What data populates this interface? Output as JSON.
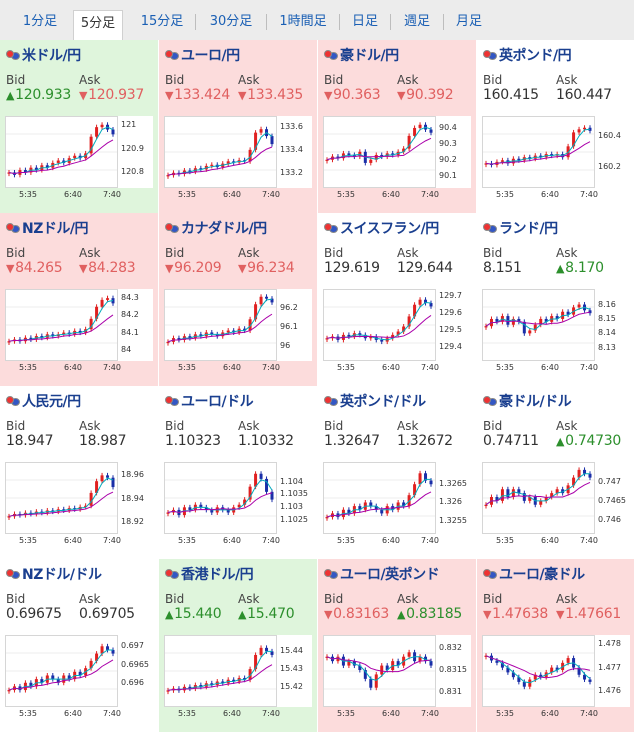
{
  "tabs": [
    "1分足",
    "5分足",
    "15分足",
    "30分足",
    "1時間足",
    "日足",
    "週足",
    "月足"
  ],
  "active_tab": 1,
  "labels": {
    "bid": "Bid",
    "ask": "Ask"
  },
  "colors": {
    "up": "#2c8f2c",
    "down": "#e06060",
    "up_bg": "#dff5dc",
    "down_bg": "#fcdcdc",
    "candle_up": "#e02020",
    "candle_down": "#1a2ea8",
    "ma_short": "#00aabb",
    "ma_long": "#aa00aa"
  },
  "x_ticks": [
    "5:35",
    "6:40",
    "7:40"
  ],
  "pairs": [
    {
      "name": "米ドル/円",
      "bg": "up",
      "bid": "120.933",
      "bid_dir": "up",
      "ask": "120.937",
      "ask_dir": "down",
      "yticks": [
        "121",
        "120.9",
        "120.8"
      ],
      "ylim": [
        120.76,
        121.02
      ],
      "series": [
        120.8,
        120.79,
        120.81,
        120.8,
        120.82,
        120.81,
        120.83,
        120.82,
        120.84,
        120.85,
        120.84,
        120.86,
        120.87,
        120.86,
        120.88,
        120.95,
        120.99,
        121.0,
        120.98,
        120.96
      ]
    },
    {
      "name": "ユーロ/円",
      "bg": "down",
      "bid": "133.424",
      "bid_dir": "down",
      "ask": "133.435",
      "ask_dir": "down",
      "yticks": [
        "133.6",
        "133.4",
        "133.2"
      ],
      "ylim": [
        133.12,
        133.66
      ],
      "series": [
        133.18,
        133.2,
        133.19,
        133.22,
        133.21,
        133.24,
        133.23,
        133.26,
        133.27,
        133.25,
        133.28,
        133.3,
        133.29,
        133.31,
        133.3,
        133.4,
        133.55,
        133.58,
        133.52,
        133.45
      ]
    },
    {
      "name": "豪ドル/円",
      "bg": "down",
      "bid": "90.363",
      "bid_dir": "down",
      "ask": "90.392",
      "ask_dir": "down",
      "yticks": [
        "90.4",
        "90.3",
        "90.2",
        "90.1"
      ],
      "ylim": [
        90.06,
        90.45
      ],
      "series": [
        90.2,
        90.22,
        90.21,
        90.24,
        90.23,
        90.22,
        90.25,
        90.18,
        90.2,
        90.23,
        90.22,
        90.24,
        90.23,
        90.25,
        90.27,
        90.35,
        90.4,
        90.42,
        90.39,
        90.37
      ]
    },
    {
      "name": "英ポンド/円",
      "bg": "flat",
      "bid": "160.415",
      "bid_dir": "flat",
      "ask": "160.447",
      "ask_dir": "flat",
      "yticks": [
        "160.4",
        "160.2"
      ],
      "ylim": [
        160.1,
        160.5
      ],
      "series": [
        160.22,
        160.21,
        160.23,
        160.24,
        160.22,
        160.25,
        160.24,
        160.26,
        160.25,
        160.27,
        160.26,
        160.28,
        160.27,
        160.28,
        160.26,
        160.33,
        160.42,
        160.44,
        160.45,
        160.43
      ]
    },
    {
      "name": "NZドル/円",
      "bg": "down",
      "bid": "84.265",
      "bid_dir": "down",
      "ask": "84.283",
      "ask_dir": "down",
      "yticks": [
        "84.3",
        "84.2",
        "84.1",
        "84"
      ],
      "ylim": [
        83.97,
        84.33
      ],
      "series": [
        84.05,
        84.06,
        84.05,
        84.07,
        84.06,
        84.08,
        84.07,
        84.09,
        84.08,
        84.09,
        84.1,
        84.09,
        84.11,
        84.1,
        84.12,
        84.18,
        84.25,
        84.29,
        84.3,
        84.27
      ]
    },
    {
      "name": "カナダドル/円",
      "bg": "down",
      "bid": "96.209",
      "bid_dir": "down",
      "ask": "96.234",
      "ask_dir": "down",
      "yticks": [
        "96.2",
        "96.1",
        "96"
      ],
      "ylim": [
        95.95,
        96.28
      ],
      "series": [
        96.02,
        96.04,
        96.03,
        96.05,
        96.04,
        96.06,
        96.05,
        96.07,
        96.06,
        96.05,
        96.07,
        96.08,
        96.07,
        96.09,
        96.08,
        96.14,
        96.22,
        96.26,
        96.25,
        96.23
      ]
    },
    {
      "name": "スイスフラン/円",
      "bg": "flat",
      "bid": "129.619",
      "bid_dir": "flat",
      "ask": "129.644",
      "ask_dir": "flat",
      "yticks": [
        "129.7",
        "129.6",
        "129.5",
        "129.4"
      ],
      "ylim": [
        129.35,
        129.72
      ],
      "series": [
        129.45,
        129.46,
        129.44,
        129.47,
        129.46,
        129.48,
        129.47,
        129.45,
        129.46,
        129.44,
        129.43,
        129.45,
        129.47,
        129.49,
        129.52,
        129.58,
        129.65,
        129.68,
        129.66,
        129.64
      ]
    },
    {
      "name": "ランド/円",
      "bg": "flat",
      "bid": "8.151",
      "bid_dir": "flat",
      "ask": "8.170",
      "ask_dir": "up",
      "yticks": [
        "8.16",
        "8.15",
        "8.14",
        "8.13"
      ],
      "ylim": [
        8.125,
        8.168
      ],
      "series": [
        8.145,
        8.15,
        8.148,
        8.152,
        8.146,
        8.15,
        8.148,
        8.14,
        8.142,
        8.146,
        8.15,
        8.148,
        8.152,
        8.15,
        8.155,
        8.153,
        8.158,
        8.16,
        8.156,
        8.154
      ]
    },
    {
      "name": "人民元/円",
      "bg": "flat",
      "bid": "18.947",
      "bid_dir": "flat",
      "ask": "18.987",
      "ask_dir": "flat",
      "yticks": [
        "18.96",
        "18.94",
        "18.92"
      ],
      "ylim": [
        18.915,
        18.968
      ],
      "series": [
        18.925,
        18.927,
        18.926,
        18.928,
        18.927,
        18.929,
        18.928,
        18.93,
        18.929,
        18.931,
        18.93,
        18.932,
        18.931,
        18.933,
        18.934,
        18.945,
        18.955,
        18.96,
        18.958,
        18.95
      ]
    },
    {
      "name": "ユーロ/ドル",
      "bg": "flat",
      "bid": "1.10323",
      "bid_dir": "flat",
      "ask": "1.10332",
      "ask_dir": "flat",
      "yticks": [
        "1.104",
        "1.1035",
        "1.103",
        "1.1025"
      ],
      "ylim": [
        1.1022,
        1.1046
      ],
      "series": [
        1.1028,
        1.1029,
        1.1027,
        1.103,
        1.1029,
        1.1031,
        1.103,
        1.1029,
        1.1028,
        1.103,
        1.1029,
        1.1028,
        1.103,
        1.1031,
        1.1033,
        1.1038,
        1.1043,
        1.1041,
        1.1036,
        1.1033
      ]
    },
    {
      "name": "英ポンド/ドル",
      "bg": "flat",
      "bid": "1.32647",
      "bid_dir": "flat",
      "ask": "1.32672",
      "ask_dir": "flat",
      "yticks": [
        "1.3265",
        "1.326",
        "1.3255"
      ],
      "ylim": [
        1.3253,
        1.327
      ],
      "series": [
        1.3256,
        1.3257,
        1.3256,
        1.3258,
        1.3257,
        1.3259,
        1.3258,
        1.326,
        1.3259,
        1.3258,
        1.3257,
        1.3259,
        1.3258,
        1.326,
        1.3259,
        1.3262,
        1.3265,
        1.3268,
        1.3266,
        1.3265
      ]
    },
    {
      "name": "豪ドル/ドル",
      "bg": "flat",
      "bid": "0.74711",
      "bid_dir": "flat",
      "ask": "0.74730",
      "ask_dir": "up",
      "yticks": [
        "0.747",
        "0.7465",
        "0.746"
      ],
      "ylim": [
        0.7458,
        0.7474
      ],
      "series": [
        0.7464,
        0.7466,
        0.7465,
        0.7468,
        0.7466,
        0.7468,
        0.7467,
        0.7465,
        0.7466,
        0.7464,
        0.7465,
        0.7466,
        0.7467,
        0.7468,
        0.7467,
        0.7469,
        0.7471,
        0.7473,
        0.7472,
        0.7471
      ]
    },
    {
      "name": "NZドル/ドル",
      "bg": "flat",
      "bid": "0.69675",
      "bid_dir": "flat",
      "ask": "0.69705",
      "ask_dir": "flat",
      "yticks": [
        "0.697",
        "0.6965",
        "0.696"
      ],
      "ylim": [
        0.6955,
        0.6972
      ],
      "series": [
        0.6958,
        0.6959,
        0.6958,
        0.696,
        0.6959,
        0.6961,
        0.696,
        0.6962,
        0.6961,
        0.696,
        0.6962,
        0.6961,
        0.6963,
        0.6962,
        0.6964,
        0.6966,
        0.6968,
        0.697,
        0.6969,
        0.6968
      ]
    },
    {
      "name": "香港ドル/円",
      "bg": "up",
      "bid": "15.440",
      "bid_dir": "up",
      "ask": "15.470",
      "ask_dir": "up",
      "yticks": [
        "15.44",
        "15.43",
        "15.42"
      ],
      "ylim": [
        15.412,
        15.447
      ],
      "series": [
        15.418,
        15.419,
        15.418,
        15.42,
        15.419,
        15.421,
        15.42,
        15.422,
        15.421,
        15.423,
        15.422,
        15.424,
        15.423,
        15.425,
        15.424,
        15.43,
        15.438,
        15.442,
        15.44,
        15.438
      ]
    },
    {
      "name": "ユーロ/英ポンド",
      "bg": "down",
      "bid": "0.83163",
      "bid_dir": "down",
      "ask": "0.83185",
      "ask_dir": "up",
      "yticks": [
        "0.832",
        "0.8315",
        "0.831"
      ],
      "ylim": [
        0.8308,
        0.8322
      ],
      "series": [
        0.8318,
        0.8317,
        0.8318,
        0.8316,
        0.8317,
        0.8316,
        0.8315,
        0.8313,
        0.8311,
        0.8314,
        0.8316,
        0.8315,
        0.8317,
        0.8316,
        0.8318,
        0.8319,
        0.8317,
        0.8318,
        0.8317,
        0.8316
      ]
    },
    {
      "name": "ユーロ/豪ドル",
      "bg": "down",
      "bid": "1.47638",
      "bid_dir": "down",
      "ask": "1.47661",
      "ask_dir": "down",
      "yticks": [
        "1.478",
        "1.477",
        "1.476"
      ],
      "ylim": [
        1.4756,
        1.4782
      ],
      "series": [
        1.4775,
        1.4773,
        1.4772,
        1.477,
        1.4768,
        1.4766,
        1.4764,
        1.4762,
        1.4765,
        1.4767,
        1.4766,
        1.4768,
        1.477,
        1.4769,
        1.4772,
        1.4774,
        1.477,
        1.4767,
        1.4765,
        1.4764
      ]
    }
  ],
  "chart_data": {
    "type": "line",
    "note_series": "candlestick approximations per pair are in pairs[].series"
  }
}
